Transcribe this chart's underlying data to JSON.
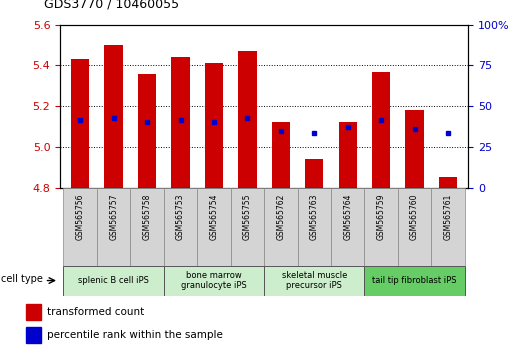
{
  "title": "GDS3770 / 10460055",
  "samples": [
    "GSM565756",
    "GSM565757",
    "GSM565758",
    "GSM565753",
    "GSM565754",
    "GSM565755",
    "GSM565762",
    "GSM565763",
    "GSM565764",
    "GSM565759",
    "GSM565760",
    "GSM565761"
  ],
  "red_values": [
    5.43,
    5.5,
    5.36,
    5.44,
    5.41,
    5.47,
    5.12,
    4.94,
    5.12,
    5.37,
    5.18,
    4.85
  ],
  "blue_values": [
    5.13,
    5.14,
    5.12,
    5.13,
    5.12,
    5.14,
    5.08,
    5.07,
    5.1,
    5.13,
    5.09,
    5.07
  ],
  "ylim": [
    4.8,
    5.6
  ],
  "yticks_left": [
    4.8,
    5.0,
    5.2,
    5.4,
    5.6
  ],
  "yticks_right": [
    0,
    25,
    50,
    75,
    100
  ],
  "base": 4.8,
  "cell_groups": [
    {
      "label": "splenic B cell iPS",
      "indices": [
        0,
        1,
        2
      ],
      "color": "#cceecc"
    },
    {
      "label": "bone marrow\ngranulocyte iPS",
      "indices": [
        3,
        4,
        5
      ],
      "color": "#cceecc"
    },
    {
      "label": "skeletal muscle\nprecursor iPS",
      "indices": [
        6,
        7,
        8
      ],
      "color": "#cceecc"
    },
    {
      "label": "tail tip fibroblast iPS",
      "indices": [
        9,
        10,
        11
      ],
      "color": "#66cc66"
    }
  ],
  "bar_color": "#cc0000",
  "dot_color": "#0000cc",
  "bar_width": 0.55,
  "tick_label_color": "#cc0000",
  "right_tick_color": "#0000cc",
  "legend_red": "transformed count",
  "legend_blue": "percentile rank within the sample",
  "cell_type_label": "cell type"
}
